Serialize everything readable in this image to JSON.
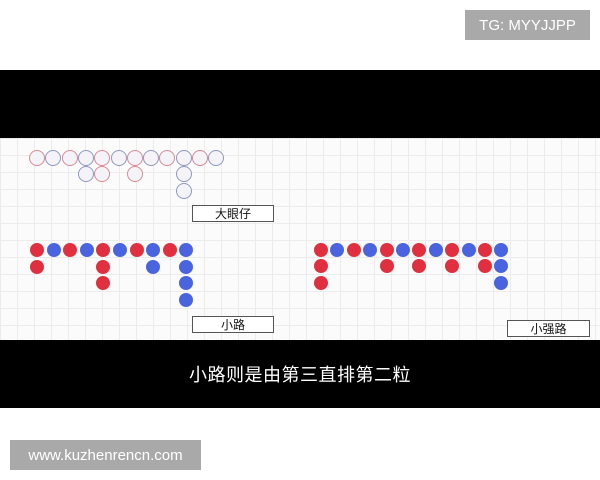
{
  "watermarks": {
    "telegram": "TG: MYYJJPP",
    "website": "www.kuzhenrencn.com"
  },
  "subtitle": "小路则是由第三直排第二粒",
  "colors": {
    "red": "#e0303f",
    "blue": "#4a64e0",
    "hollow_red": "#d98a94",
    "hollow_blue": "#8f97c4"
  },
  "roads": {
    "big_eye": {
      "label": "大眼仔",
      "style": "hollow",
      "columns": [
        [
          "red",
          1
        ],
        [
          "blue",
          1
        ],
        [
          "red",
          1
        ],
        [
          "blue",
          2
        ],
        [
          "red",
          2
        ],
        [
          "blue",
          1
        ],
        [
          "red",
          2
        ],
        [
          "blue",
          1
        ],
        [
          "red",
          1
        ],
        [
          "blue",
          3
        ],
        [
          "red",
          1
        ],
        [
          "blue",
          1
        ]
      ]
    },
    "small_road": {
      "label": "小路",
      "style": "filled",
      "columns": [
        [
          "red",
          2
        ],
        [
          "blue",
          1
        ],
        [
          "red",
          1
        ],
        [
          "blue",
          1
        ],
        [
          "red",
          3
        ],
        [
          "blue",
          1
        ],
        [
          "red",
          1
        ],
        [
          "blue",
          2
        ],
        [
          "red",
          1
        ],
        [
          "blue",
          4
        ]
      ]
    },
    "cockroach_road": {
      "label": "小强路",
      "style": "filled",
      "columns": [
        [
          "red",
          3
        ],
        [
          "blue",
          1
        ],
        [
          "red",
          1
        ],
        [
          "blue",
          1
        ],
        [
          "red",
          2
        ],
        [
          "blue",
          1
        ],
        [
          "red",
          2
        ],
        [
          "blue",
          1
        ],
        [
          "red",
          2
        ],
        [
          "blue",
          1
        ],
        [
          "red",
          2
        ],
        [
          "blue",
          3
        ]
      ]
    }
  }
}
